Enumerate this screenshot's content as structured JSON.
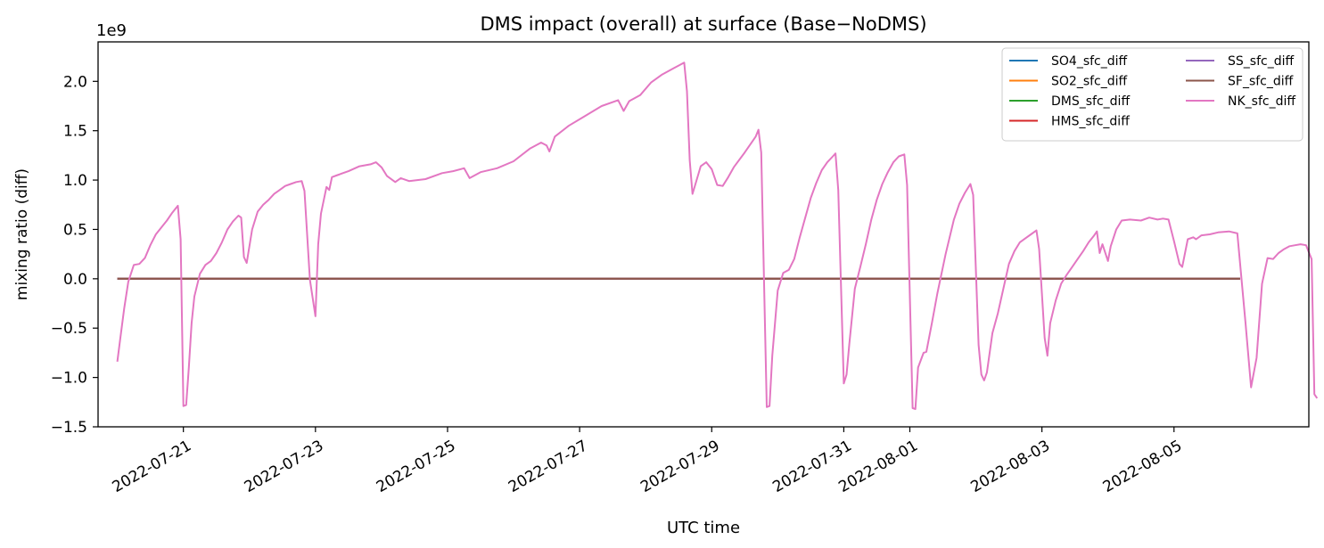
{
  "chart_data": {
    "type": "line",
    "title": "DMS impact (overall) at surface (Base−NoDMS)",
    "xlabel": "UTC time",
    "ylabel": "mixing ratio (diff)",
    "y_offset_text": "1e9",
    "y_scale_factor": 1000000000.0,
    "ylim": [
      -1500000000.0,
      2400000000.0
    ],
    "xlim": [
      "2022-07-19T17:00",
      "2022-08-07T01:00"
    ],
    "x_ticks": [
      "2022-07-21",
      "2022-07-23",
      "2022-07-25",
      "2022-07-27",
      "2022-07-29",
      "2022-07-31",
      "2022-08-01",
      "2022-08-03",
      "2022-08-05"
    ],
    "x_tick_labels": [
      "2022-07-21",
      "2022-07-23",
      "2022-07-25",
      "2022-07-27",
      "2022-07-29",
      "2022-07-31",
      "2022-08-01",
      "2022-08-03",
      "2022-08-05"
    ],
    "y_ticks": [
      -1.5,
      -1.0,
      -0.5,
      0.0,
      0.5,
      1.0,
      1.5,
      2.0
    ],
    "y_tick_labels": [
      "−1.5",
      "−1.0",
      "−0.5",
      "0.0",
      "0.5",
      "1.0",
      "1.5",
      "2.0"
    ],
    "grid": false,
    "legend_position": "top-right",
    "legend_columns": 2,
    "series": [
      {
        "name": "SO4_sfc_diff",
        "color": "#1f77b4",
        "points": [
          [
            "2022-07-20T00:00",
            0
          ],
          [
            "2022-08-06T00:00",
            0
          ]
        ]
      },
      {
        "name": "SO2_sfc_diff",
        "color": "#ff7f0e",
        "points": [
          [
            "2022-07-20T00:00",
            0
          ],
          [
            "2022-08-06T00:00",
            0
          ]
        ]
      },
      {
        "name": "DMS_sfc_diff",
        "color": "#2ca02c",
        "points": [
          [
            "2022-07-20T00:00",
            0
          ],
          [
            "2022-08-06T00:00",
            0
          ]
        ]
      },
      {
        "name": "HMS_sfc_diff",
        "color": "#d62728",
        "points": [
          [
            "2022-07-20T00:00",
            0
          ],
          [
            "2022-08-06T00:00",
            0
          ]
        ]
      },
      {
        "name": "SS_sfc_diff",
        "color": "#9467bd",
        "points": [
          [
            "2022-07-20T00:00",
            0
          ],
          [
            "2022-08-06T00:00",
            0
          ]
        ]
      },
      {
        "name": "SF_sfc_diff",
        "color": "#8c564b",
        "points": [
          [
            "2022-07-20T00:00",
            0
          ],
          [
            "2022-08-06T00:00",
            0
          ]
        ]
      },
      {
        "name": "NK_sfc_diff",
        "color": "#e377c2",
        "points": [
          [
            "2022-07-20T00:00",
            -840000000.0
          ],
          [
            "2022-07-20T01:00",
            -620000000.0
          ],
          [
            "2022-07-20T02:30",
            -300000000.0
          ],
          [
            "2022-07-20T04:00",
            -30000000.0
          ],
          [
            "2022-07-20T06:00",
            140000000.0
          ],
          [
            "2022-07-20T08:00",
            150000000.0
          ],
          [
            "2022-07-20T10:00",
            210000000.0
          ],
          [
            "2022-07-20T12:00",
            340000000.0
          ],
          [
            "2022-07-20T14:00",
            450000000.0
          ],
          [
            "2022-07-20T16:00",
            520000000.0
          ],
          [
            "2022-07-20T18:00",
            590000000.0
          ],
          [
            "2022-07-20T20:00",
            670000000.0
          ],
          [
            "2022-07-20T22:00",
            740000000.0
          ],
          [
            "2022-07-20T23:00",
            400000000.0
          ],
          [
            "2022-07-21T00:00",
            -1290000000.0
          ],
          [
            "2022-07-21T01:00",
            -1280000000.0
          ],
          [
            "2022-07-21T02:00",
            -900000000.0
          ],
          [
            "2022-07-21T03:00",
            -450000000.0
          ],
          [
            "2022-07-21T04:00",
            -180000000.0
          ],
          [
            "2022-07-21T06:00",
            50000000.0
          ],
          [
            "2022-07-21T08:00",
            140000000.0
          ],
          [
            "2022-07-21T10:00",
            180000000.0
          ],
          [
            "2022-07-21T12:00",
            260000000.0
          ],
          [
            "2022-07-21T14:00",
            370000000.0
          ],
          [
            "2022-07-21T16:00",
            500000000.0
          ],
          [
            "2022-07-21T18:00",
            580000000.0
          ],
          [
            "2022-07-21T20:00",
            640000000.0
          ],
          [
            "2022-07-21T21:00",
            620000000.0
          ],
          [
            "2022-07-21T22:00",
            220000000.0
          ],
          [
            "2022-07-21T23:00",
            160000000.0
          ],
          [
            "2022-07-22T01:00",
            500000000.0
          ],
          [
            "2022-07-22T03:00",
            680000000.0
          ],
          [
            "2022-07-22T05:00",
            750000000.0
          ],
          [
            "2022-07-22T07:00",
            800000000.0
          ],
          [
            "2022-07-22T09:00",
            860000000.0
          ],
          [
            "2022-07-22T11:00",
            900000000.0
          ],
          [
            "2022-07-22T13:00",
            940000000.0
          ],
          [
            "2022-07-22T15:00",
            960000000.0
          ],
          [
            "2022-07-22T17:00",
            980000000.0
          ],
          [
            "2022-07-22T19:00",
            990000000.0
          ],
          [
            "2022-07-22T20:00",
            890000000.0
          ],
          [
            "2022-07-22T22:00",
            -10000000.0
          ],
          [
            "2022-07-23T00:00",
            -380000000.0
          ],
          [
            "2022-07-23T01:00",
            350000000.0
          ],
          [
            "2022-07-23T02:00",
            660000000.0
          ],
          [
            "2022-07-23T04:00",
            930000000.0
          ],
          [
            "2022-07-23T05:00",
            900000000.0
          ],
          [
            "2022-07-23T06:00",
            1030000000.0
          ],
          [
            "2022-07-23T08:00",
            1050000000.0
          ],
          [
            "2022-07-23T12:00",
            1090000000.0
          ],
          [
            "2022-07-23T16:00",
            1140000000.0
          ],
          [
            "2022-07-23T20:00",
            1160000000.0
          ],
          [
            "2022-07-23T22:00",
            1180000000.0
          ],
          [
            "2022-07-24T00:00",
            1130000000.0
          ],
          [
            "2022-07-24T02:00",
            1040000000.0
          ],
          [
            "2022-07-24T05:00",
            980000000.0
          ],
          [
            "2022-07-24T07:00",
            1020000000.0
          ],
          [
            "2022-07-24T10:00",
            990000000.0
          ],
          [
            "2022-07-24T16:00",
            1010000000.0
          ],
          [
            "2022-07-24T22:00",
            1070000000.0
          ],
          [
            "2022-07-25T02:00",
            1090000000.0
          ],
          [
            "2022-07-25T06:00",
            1120000000.0
          ],
          [
            "2022-07-25T08:00",
            1020000000.0
          ],
          [
            "2022-07-25T12:00",
            1080000000.0
          ],
          [
            "2022-07-25T18:00",
            1120000000.0
          ],
          [
            "2022-07-26T00:00",
            1190000000.0
          ],
          [
            "2022-07-26T06:00",
            1320000000.0
          ],
          [
            "2022-07-26T10:00",
            1380000000.0
          ],
          [
            "2022-07-26T12:00",
            1350000000.0
          ],
          [
            "2022-07-26T13:00",
            1290000000.0
          ],
          [
            "2022-07-26T15:00",
            1440000000.0
          ],
          [
            "2022-07-26T20:00",
            1550000000.0
          ],
          [
            "2022-07-27T02:00",
            1650000000.0
          ],
          [
            "2022-07-27T08:00",
            1750000000.0
          ],
          [
            "2022-07-27T14:00",
            1810000000.0
          ],
          [
            "2022-07-27T16:00",
            1700000000.0
          ],
          [
            "2022-07-27T18:00",
            1800000000.0
          ],
          [
            "2022-07-27T22:00",
            1860000000.0
          ],
          [
            "2022-07-28T02:00",
            1990000000.0
          ],
          [
            "2022-07-28T06:00",
            2070000000.0
          ],
          [
            "2022-07-28T10:00",
            2130000000.0
          ],
          [
            "2022-07-28T14:00",
            2190000000.0
          ],
          [
            "2022-07-28T15:00",
            1900000000.0
          ],
          [
            "2022-07-28T16:00",
            1200000000.0
          ],
          [
            "2022-07-28T17:00",
            860000000.0
          ],
          [
            "2022-07-28T18:00",
            950000000.0
          ],
          [
            "2022-07-28T20:00",
            1140000000.0
          ],
          [
            "2022-07-28T22:00",
            1180000000.0
          ],
          [
            "2022-07-29T00:00",
            1110000000.0
          ],
          [
            "2022-07-29T02:00",
            950000000.0
          ],
          [
            "2022-07-29T04:00",
            940000000.0
          ],
          [
            "2022-07-29T06:00",
            1030000000.0
          ],
          [
            "2022-07-29T08:00",
            1130000000.0
          ],
          [
            "2022-07-29T12:00",
            1280000000.0
          ],
          [
            "2022-07-29T16:00",
            1440000000.0
          ],
          [
            "2022-07-29T17:00",
            1510000000.0
          ],
          [
            "2022-07-29T18:00",
            1280000000.0
          ],
          [
            "2022-07-29T20:00",
            -1300000000.0
          ],
          [
            "2022-07-29T21:00",
            -1290000000.0
          ],
          [
            "2022-07-29T22:00",
            -780000000.0
          ],
          [
            "2022-07-30T00:00",
            -120000000.0
          ],
          [
            "2022-07-30T02:00",
            60000000.0
          ],
          [
            "2022-07-30T04:00",
            90000000.0
          ],
          [
            "2022-07-30T06:00",
            200000000.0
          ],
          [
            "2022-07-30T08:00",
            420000000.0
          ],
          [
            "2022-07-30T10:00",
            620000000.0
          ],
          [
            "2022-07-30T12:00",
            820000000.0
          ],
          [
            "2022-07-30T14:00",
            970000000.0
          ],
          [
            "2022-07-30T16:00",
            1100000000.0
          ],
          [
            "2022-07-30T18:00",
            1180000000.0
          ],
          [
            "2022-07-30T20:00",
            1240000000.0
          ],
          [
            "2022-07-30T21:00",
            1270000000.0
          ],
          [
            "2022-07-30T22:00",
            900000000.0
          ],
          [
            "2022-07-31T00:00",
            -1060000000.0
          ],
          [
            "2022-07-31T01:00",
            -970000000.0
          ],
          [
            "2022-07-31T02:00",
            -660000000.0
          ],
          [
            "2022-07-31T04:00",
            -100000000.0
          ],
          [
            "2022-07-31T06:00",
            120000000.0
          ],
          [
            "2022-07-31T08:00",
            350000000.0
          ],
          [
            "2022-07-31T10:00",
            600000000.0
          ],
          [
            "2022-07-31T12:00",
            800000000.0
          ],
          [
            "2022-07-31T14:00",
            960000000.0
          ],
          [
            "2022-07-31T16:00",
            1080000000.0
          ],
          [
            "2022-07-31T18:00",
            1180000000.0
          ],
          [
            "2022-07-31T20:00",
            1240000000.0
          ],
          [
            "2022-07-31T22:00",
            1260000000.0
          ],
          [
            "2022-07-31T23:00",
            950000000.0
          ],
          [
            "2022-08-01T01:00",
            -1310000000.0
          ],
          [
            "2022-08-01T02:00",
            -1320000000.0
          ],
          [
            "2022-08-01T03:00",
            -900000000.0
          ],
          [
            "2022-08-01T05:00",
            -750000000.0
          ],
          [
            "2022-08-01T06:00",
            -740000000.0
          ],
          [
            "2022-08-01T08:00",
            -450000000.0
          ],
          [
            "2022-08-01T10:00",
            -150000000.0
          ],
          [
            "2022-08-01T13:00",
            250000000.0
          ],
          [
            "2022-08-01T16:00",
            600000000.0
          ],
          [
            "2022-08-01T18:00",
            760000000.0
          ],
          [
            "2022-08-01T20:00",
            870000000.0
          ],
          [
            "2022-08-01T22:00",
            960000000.0
          ],
          [
            "2022-08-01T23:00",
            850000000.0
          ],
          [
            "2022-08-02T01:00",
            -670000000.0
          ],
          [
            "2022-08-02T02:00",
            -970000000.0
          ],
          [
            "2022-08-02T03:00",
            -1030000000.0
          ],
          [
            "2022-08-02T04:00",
            -950000000.0
          ],
          [
            "2022-08-02T06:00",
            -550000000.0
          ],
          [
            "2022-08-02T08:00",
            -350000000.0
          ],
          [
            "2022-08-02T10:00",
            -100000000.0
          ],
          [
            "2022-08-02T12:00",
            150000000.0
          ],
          [
            "2022-08-02T14:00",
            280000000.0
          ],
          [
            "2022-08-02T16:00",
            370000000.0
          ],
          [
            "2022-08-02T18:00",
            410000000.0
          ],
          [
            "2022-08-02T20:00",
            450000000.0
          ],
          [
            "2022-08-02T22:00",
            490000000.0
          ],
          [
            "2022-08-02T23:00",
            300000000.0
          ],
          [
            "2022-08-03T01:00",
            -600000000.0
          ],
          [
            "2022-08-03T02:00",
            -780000000.0
          ],
          [
            "2022-08-03T03:00",
            -450000000.0
          ],
          [
            "2022-08-03T05:00",
            -220000000.0
          ],
          [
            "2022-08-03T07:00",
            -50000000.0
          ],
          [
            "2022-08-03T09:00",
            40000000.0
          ],
          [
            "2022-08-03T11:00",
            120000000.0
          ],
          [
            "2022-08-03T13:00",
            200000000.0
          ],
          [
            "2022-08-03T15:00",
            280000000.0
          ],
          [
            "2022-08-03T17:00",
            370000000.0
          ],
          [
            "2022-08-03T19:00",
            440000000.0
          ],
          [
            "2022-08-03T20:00",
            480000000.0
          ],
          [
            "2022-08-03T21:00",
            260000000.0
          ],
          [
            "2022-08-03T22:00",
            350000000.0
          ],
          [
            "2022-08-04T00:00",
            180000000.0
          ],
          [
            "2022-08-04T01:00",
            330000000.0
          ],
          [
            "2022-08-04T03:00",
            500000000.0
          ],
          [
            "2022-08-04T05:00",
            590000000.0
          ],
          [
            "2022-08-04T08:00",
            600000000.0
          ],
          [
            "2022-08-04T12:00",
            590000000.0
          ],
          [
            "2022-08-04T15:00",
            620000000.0
          ],
          [
            "2022-08-04T18:00",
            600000000.0
          ],
          [
            "2022-08-04T20:00",
            610000000.0
          ],
          [
            "2022-08-04T22:00",
            600000000.0
          ],
          [
            "2022-08-05T00:00",
            380000000.0
          ],
          [
            "2022-08-05T02:00",
            150000000.0
          ],
          [
            "2022-08-05T03:00",
            120000000.0
          ],
          [
            "2022-08-05T05:00",
            400000000.0
          ],
          [
            "2022-08-05T07:00",
            420000000.0
          ],
          [
            "2022-08-05T08:00",
            400000000.0
          ],
          [
            "2022-08-05T10:00",
            440000000.0
          ],
          [
            "2022-08-05T13:00",
            450000000.0
          ],
          [
            "2022-08-05T16:00",
            470000000.0
          ],
          [
            "2022-08-05T20:00",
            480000000.0
          ],
          [
            "2022-08-05T23:00",
            460000000.0
          ],
          [
            "2022-08-06T02:00",
            -450000000.0
          ],
          [
            "2022-08-06T04:00",
            -1100000000.0
          ],
          [
            "2022-08-06T06:00",
            -800000000.0
          ],
          [
            "2022-08-06T08:00",
            -50000000.0
          ],
          [
            "2022-08-06T10:00",
            210000000.0
          ],
          [
            "2022-08-06T12:00",
            200000000.0
          ],
          [
            "2022-08-06T14:00",
            260000000.0
          ],
          [
            "2022-08-06T16:00",
            300000000.0
          ],
          [
            "2022-08-06T18:00",
            330000000.0
          ],
          [
            "2022-08-06T20:00",
            340000000.0
          ],
          [
            "2022-08-06T22:00",
            350000000.0
          ],
          [
            "2022-08-07T00:00",
            340000000.0
          ],
          [
            "2022-08-07T02:00",
            200000000.0
          ],
          [
            "2022-08-07T03:00",
            -1170000000.0
          ],
          [
            "2022-08-07T04:00",
            -1210000000.0
          ]
        ]
      }
    ]
  }
}
